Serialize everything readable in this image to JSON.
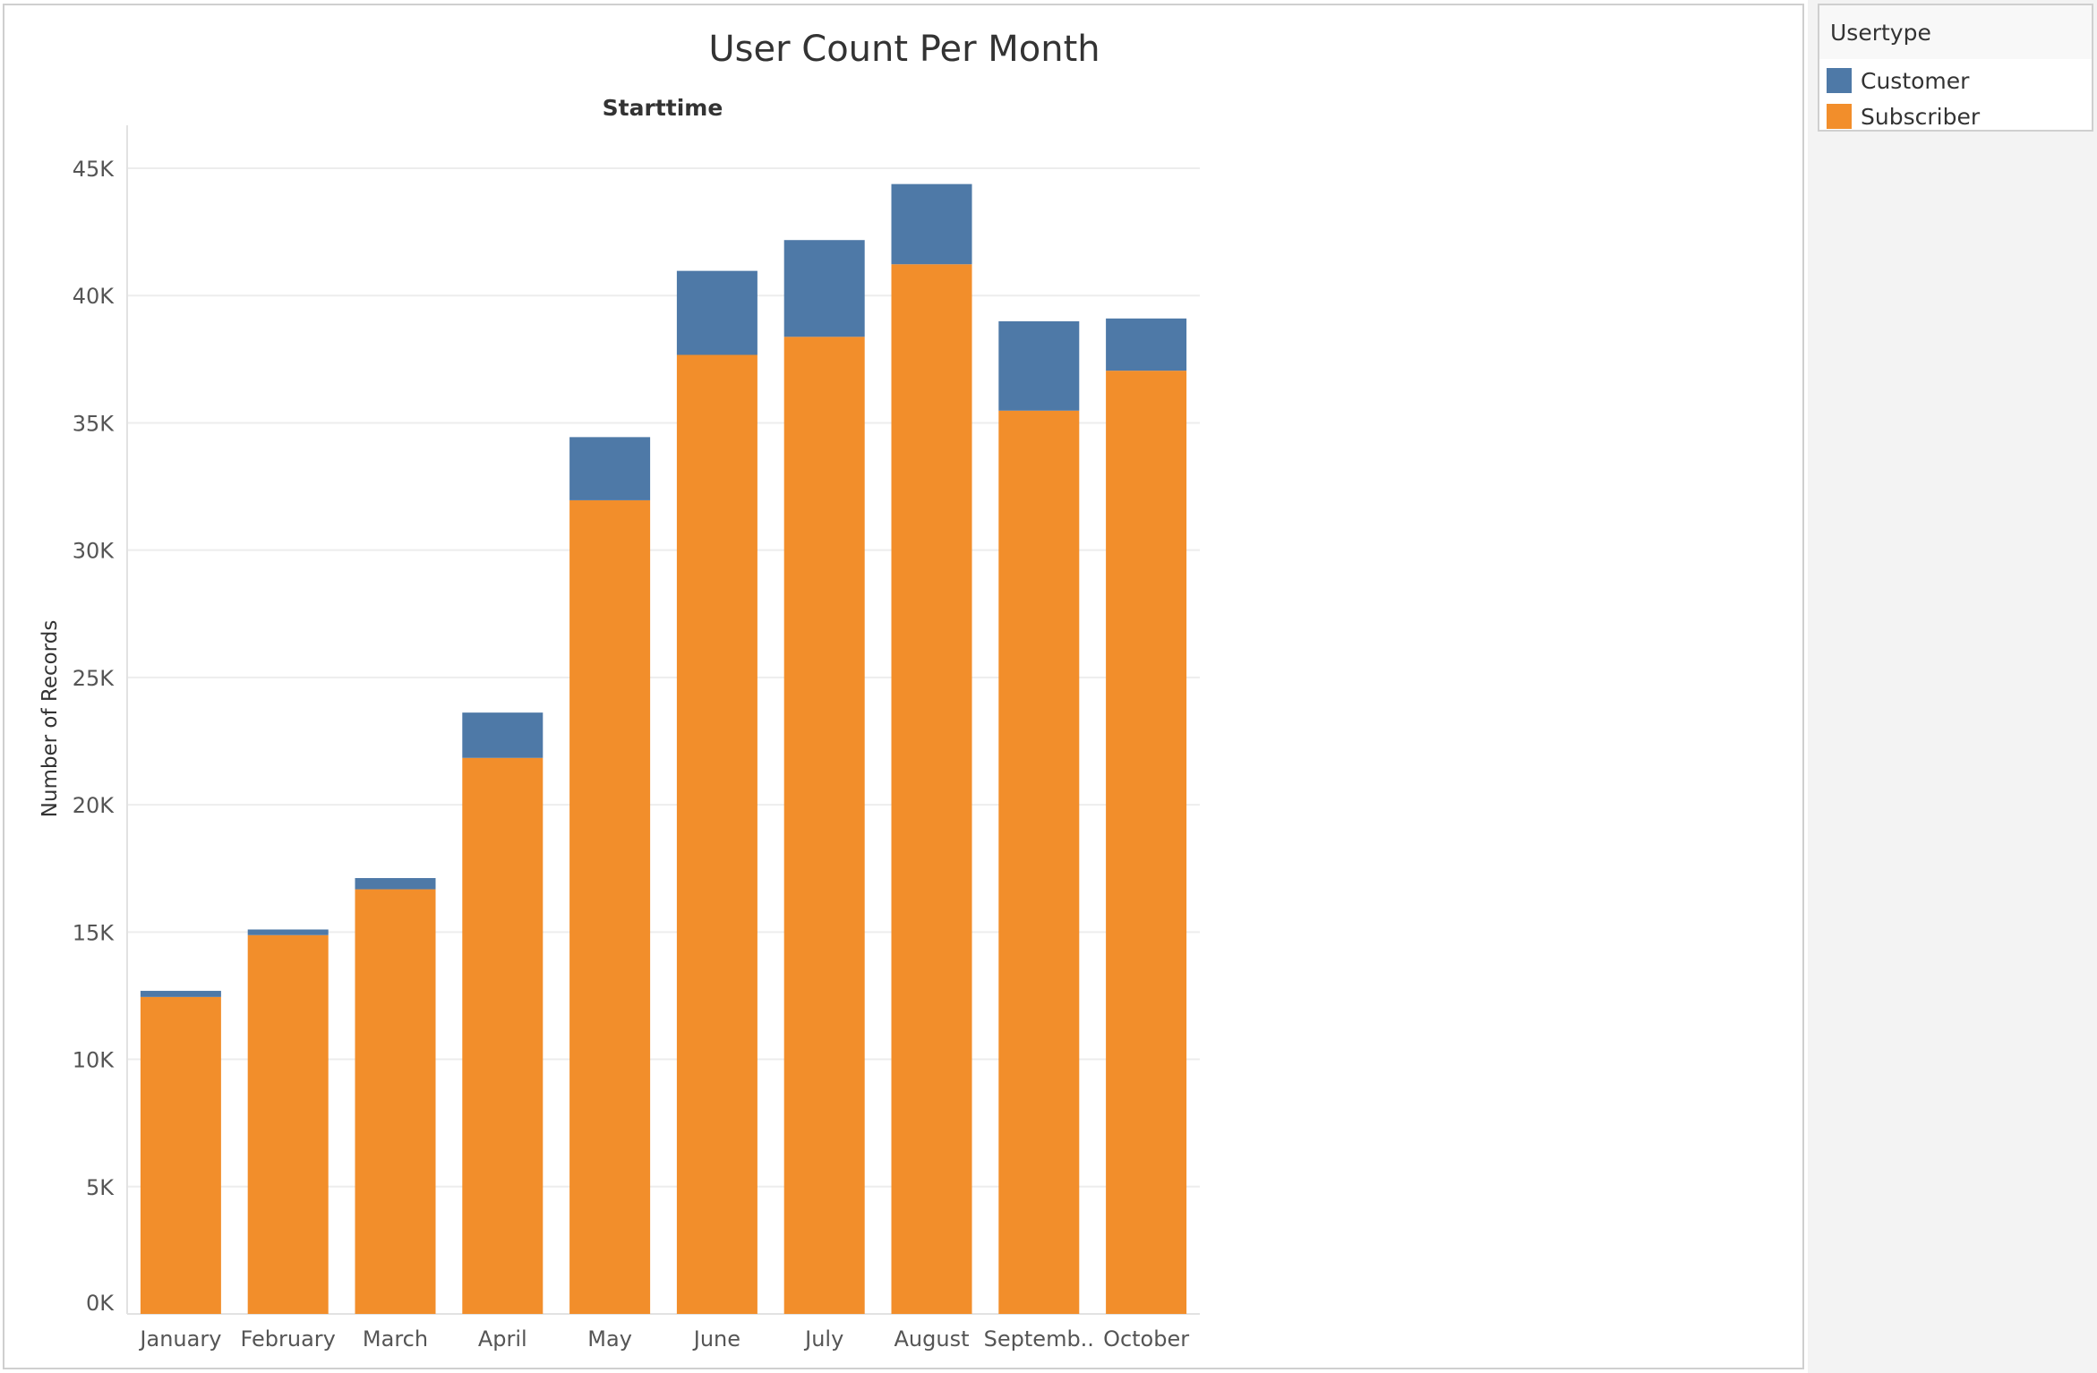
{
  "chart_data": {
    "type": "bar",
    "stacked": true,
    "title": "User Count Per Month",
    "subtitle": "Starttime",
    "xlabel": "",
    "ylabel": "Number of Records",
    "categories": [
      "January",
      "February",
      "March",
      "April",
      "May",
      "June",
      "July",
      "August",
      "Septemb..",
      "October"
    ],
    "series": [
      {
        "name": "Subscriber",
        "color": "#f28e2b",
        "values": [
          12450,
          14880,
          16680,
          21840,
          31960,
          37670,
          38380,
          41230,
          35480,
          37050
        ]
      },
      {
        "name": "Customer",
        "color": "#4e79a7",
        "values": [
          240,
          220,
          440,
          1780,
          2480,
          3300,
          3800,
          3150,
          3510,
          2050
        ]
      }
    ],
    "ylim": [
      0,
      45000
    ],
    "yticks": [
      0,
      5000,
      10000,
      15000,
      20000,
      25000,
      30000,
      35000,
      40000,
      45000
    ],
    "ytick_labels": [
      "0K",
      "5K",
      "10K",
      "15K",
      "20K",
      "25K",
      "30K",
      "35K",
      "40K",
      "45K"
    ],
    "grid": true,
    "legend": {
      "title": "Usertype",
      "placement": "top-right",
      "items": [
        "Customer",
        "Subscriber"
      ]
    }
  }
}
